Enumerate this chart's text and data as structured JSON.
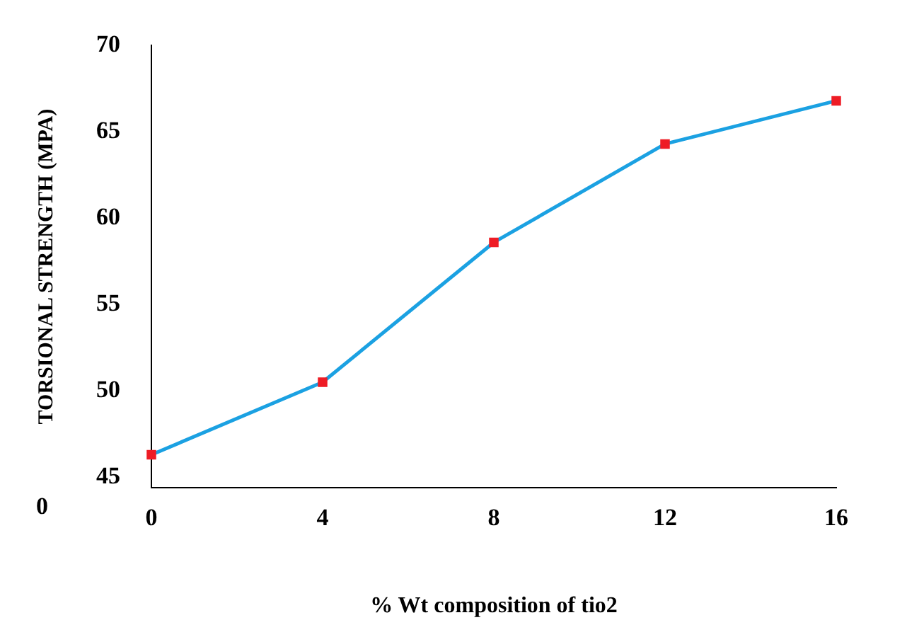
{
  "chart_data": {
    "type": "line",
    "xlabel": "% Wt composition of tio2",
    "ylabel": "TORSIONAL STRENGTH (MPA)",
    "categories": [
      "0",
      "4",
      "8",
      "12",
      "16"
    ],
    "series": [
      {
        "color": "#1ba1e2",
        "colors": [
          "#ee1c25",
          "#ee1c25",
          "#ee1c25",
          "#ee1c25",
          "#ee1c25"
        ],
        "values": [
          46.3,
          50.5,
          58.6,
          64.3,
          66.8
        ]
      }
    ],
    "ylim": [
      44.4,
      70
    ],
    "yticks": [
      45,
      50,
      55,
      60,
      65,
      70
    ],
    "annotations": [
      "0"
    ],
    "marker": "square",
    "line_style": "solid",
    "grid": false,
    "legend": false
  }
}
